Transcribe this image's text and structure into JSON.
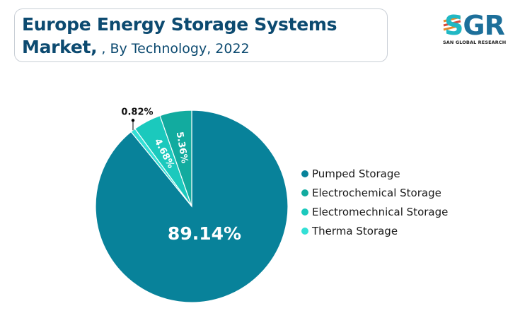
{
  "header": {
    "title_line1": "Europe Energy Storage Systems",
    "title_bold2": "Market,",
    "title_sub": " , By Technology, 2022"
  },
  "logo": {
    "letters_s": "S",
    "letters_gr": "GR",
    "subtitle": "SAN GLOBAL RESEARCH"
  },
  "chart_data": {
    "type": "pie",
    "title": "Europe Energy Storage Systems Market, , By Technology, 2022",
    "start": "12 o'clock",
    "direction": "clockwise",
    "legend_position": "right",
    "slices": [
      {
        "label": "Pumped Storage",
        "value": 89.14,
        "display": "89.14%",
        "color": "#08829a"
      },
      {
        "label": "Therma Storage",
        "value": 0.82,
        "display": "0.82%",
        "color": "#34e0d6"
      },
      {
        "label": "Electromechnical Storage",
        "value": 4.68,
        "display": "4.68%",
        "color": "#1bc9bd"
      },
      {
        "label": "Electrochemical Storage",
        "value": 5.36,
        "display": "5.36%",
        "color": "#12ab9f"
      }
    ],
    "legend": [
      {
        "label": "Pumped Storage",
        "color": "#08829a"
      },
      {
        "label": "Electrochemical Storage",
        "color": "#12ab9f"
      },
      {
        "label": "Electromechnical Storage",
        "color": "#1bc9bd"
      },
      {
        "label": "Therma Storage",
        "color": "#34e0d6"
      }
    ]
  }
}
